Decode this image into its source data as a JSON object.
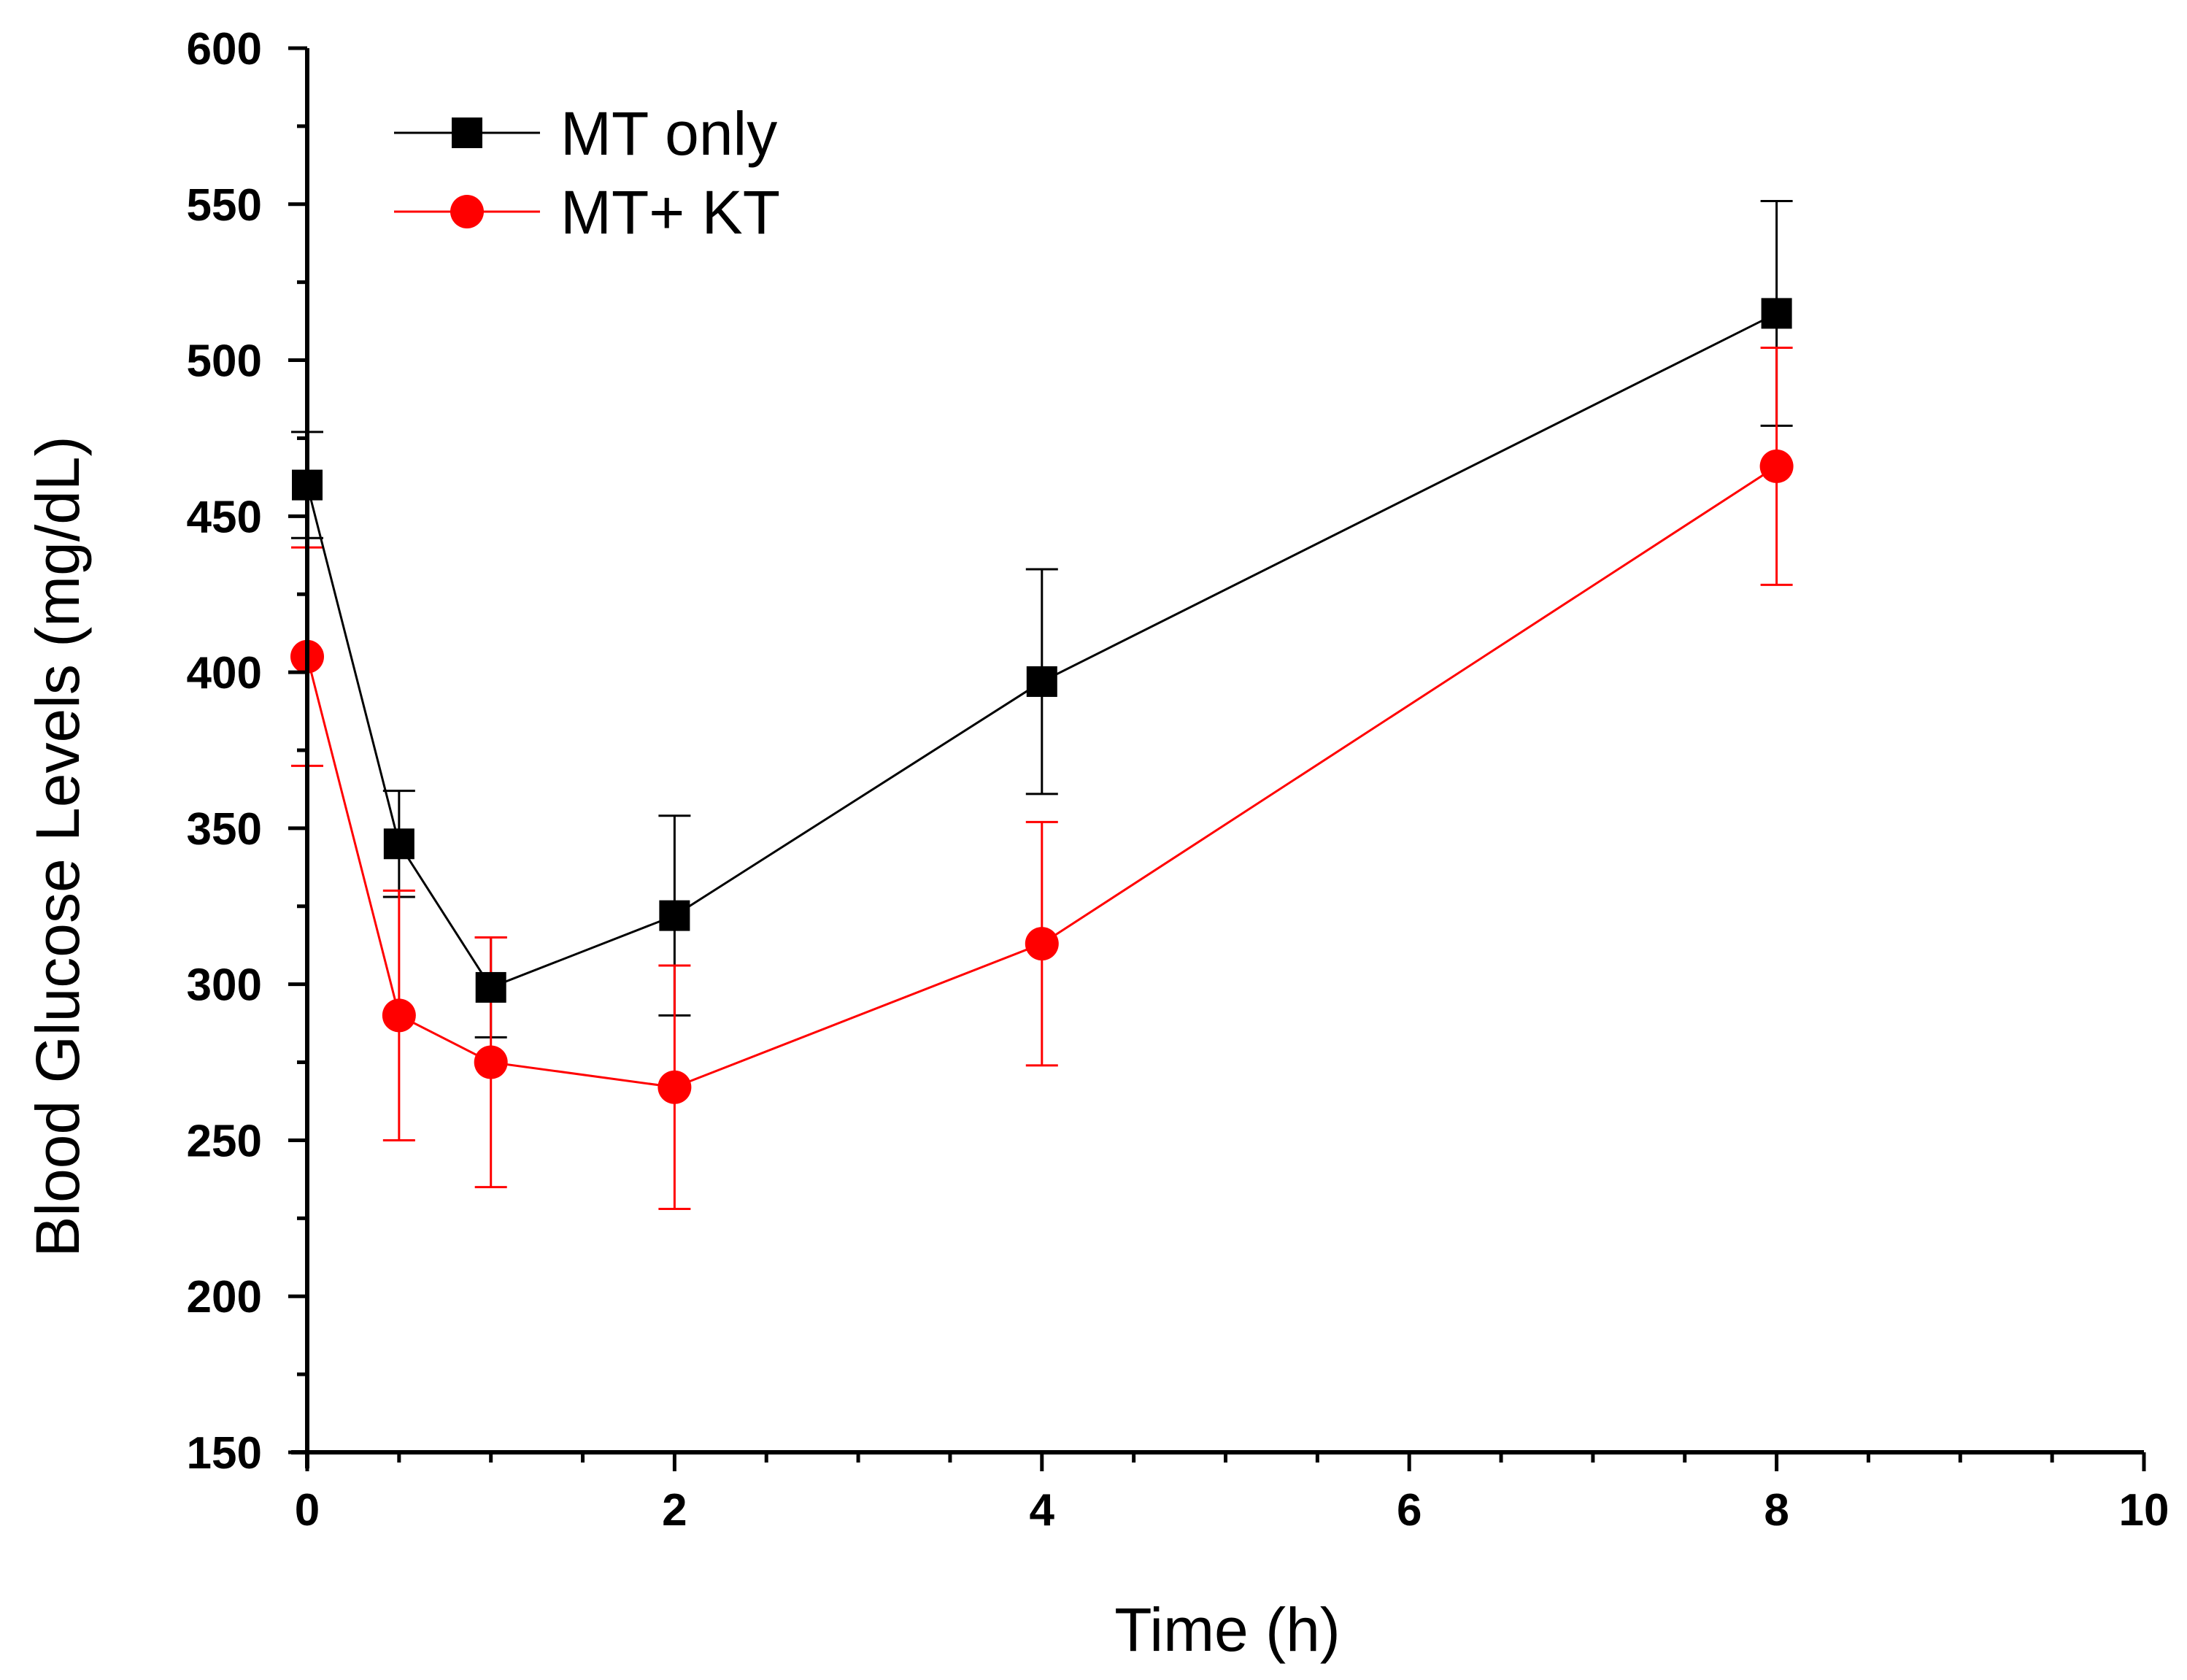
{
  "chart_data": {
    "type": "line",
    "title": "",
    "xlabel": "Time (h)",
    "ylabel": "Blood Glucose Levels (mg/dL)",
    "xlim": [
      0,
      10
    ],
    "ylim": [
      150,
      600
    ],
    "x_major_ticks": [
      0,
      2,
      4,
      6,
      8,
      10
    ],
    "x_tick_labels": [
      "0",
      "2",
      "4",
      "6",
      "8",
      "10"
    ],
    "x_minor_step": 0.5,
    "y_major_ticks": [
      150,
      200,
      250,
      300,
      350,
      400,
      450,
      500,
      550,
      600
    ],
    "y_tick_labels": [
      "150",
      "200",
      "250",
      "300",
      "350",
      "400",
      "450",
      "500",
      "550",
      "600"
    ],
    "y_minor_step": 25,
    "grid": false,
    "legend_position": "top-left",
    "series": [
      {
        "name": "MT only",
        "color": "#000000",
        "marker": "square",
        "x": [
          0,
          0.5,
          1,
          2,
          4,
          8
        ],
        "y": [
          460,
          345,
          299,
          322,
          397,
          515
        ],
        "error": [
          17,
          17,
          16,
          32,
          36,
          36
        ]
      },
      {
        "name": "MT+ KT",
        "color": "#ff0000",
        "marker": "circle",
        "x": [
          0,
          0.5,
          1,
          2,
          4,
          8
        ],
        "y": [
          405,
          290,
          275,
          267,
          313,
          466
        ],
        "error": [
          35,
          40,
          40,
          39,
          39,
          38
        ]
      }
    ]
  }
}
